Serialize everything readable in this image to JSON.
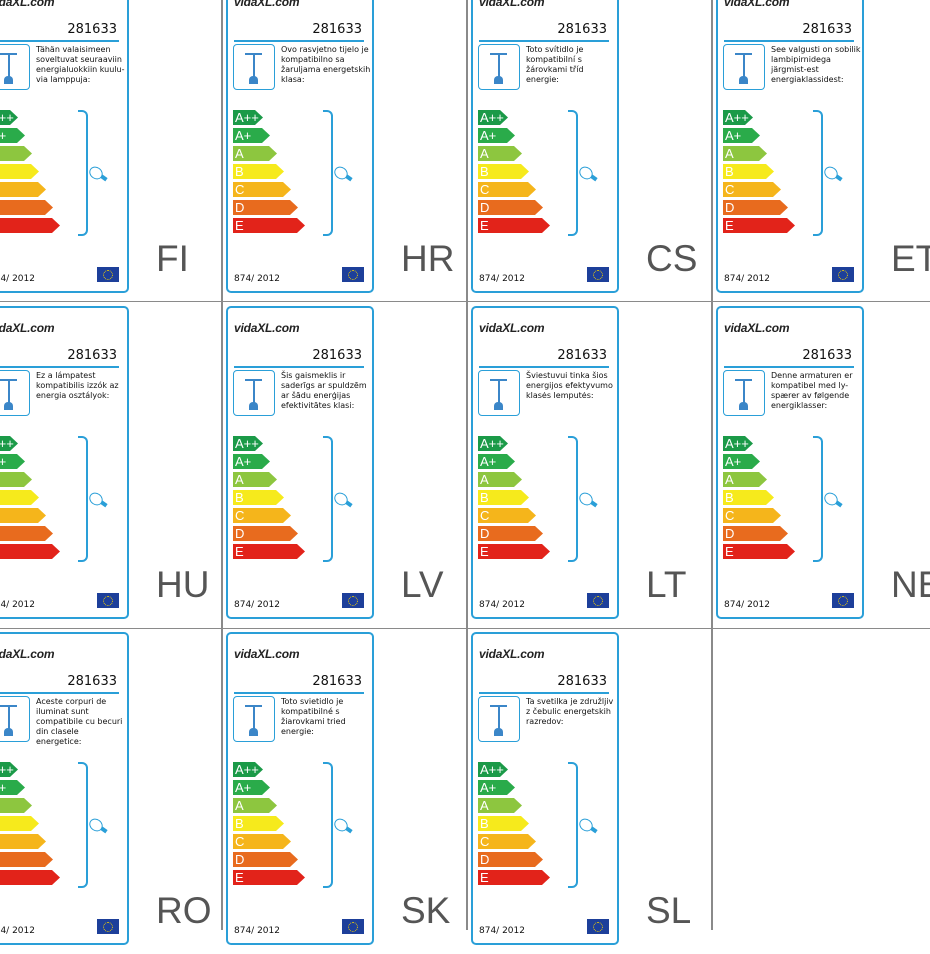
{
  "product_number": "281633",
  "brand": "vidaXL.com",
  "regulation": "874/ 2012",
  "classes": [
    "A++",
    "A+",
    "A",
    "B",
    "C",
    "D",
    "E"
  ],
  "class_colors": [
    "#1b9a48",
    "#2aab4a",
    "#8dc63f",
    "#f6ea1c",
    "#f5b51b",
    "#e86b1e",
    "#e2231a"
  ],
  "accent_color": "#2a9fd8",
  "labels": [
    {
      "code": "FI",
      "text": "Tähän valaisimeen soveltuvat seuraaviin energialuokkiin kuulu-via lamppuja:"
    },
    {
      "code": "HR",
      "text": "Ovo rasvjetno tijelo je kompatibilno sa žaruljama energetskih klasa:"
    },
    {
      "code": "CS",
      "text": "Toto svítidlo je kompatibilní s žárovkami tříd energie:"
    },
    {
      "code": "ET",
      "text": "See valgusti on sobilik lambipirnidega järgmist-est energiaklassidest:"
    },
    {
      "code": "HU",
      "text": "Ez a lámpatest kompatibilis izzók az energia osztályok:"
    },
    {
      "code": "LV",
      "text": "Šis gaismeklis ir saderīgs ar spuldzēm ar šādu enerģijas efektivitātes klasi:"
    },
    {
      "code": "LT",
      "text": "Šviestuvui tinka šios energijos efektyvumo klasės lemputės:"
    },
    {
      "code": "NE",
      "text": "Denne armaturen er kompatibel med ly-spærer av følgende energiklasser:"
    },
    {
      "code": "RO",
      "text": "Aceste corpuri de iluminat sunt compatibile cu becuri din clasele energetice:"
    },
    {
      "code": "SK",
      "text": "Toto svietidlo je kompatibilné s žiarovkami tried energie:"
    },
    {
      "code": "SL",
      "text": "Ta svetilka je združljiv z čebulic energetskih razredov:"
    }
  ]
}
